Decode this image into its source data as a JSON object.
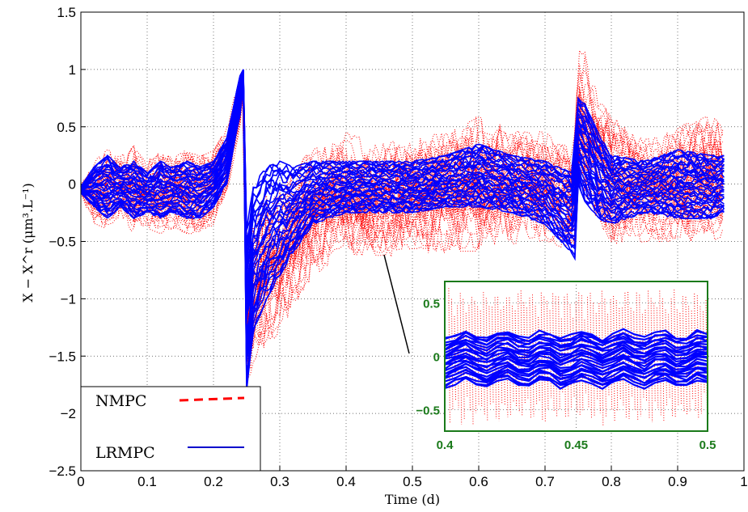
{
  "chart_data": {
    "type": "line",
    "xlabel": "Time (d)",
    "ylabel": "X − X^r  (μm³.L⁻¹)",
    "xlim": [
      0,
      1
    ],
    "ylim": [
      -2.5,
      1.5
    ],
    "x_ticks": [
      "0",
      "0.1",
      "0.2",
      "0.3",
      "0.4",
      "0.5",
      "0.6",
      "0.7",
      "0.8",
      "0.9",
      "1"
    ],
    "y_ticks": [
      "1.5",
      "1",
      "0.5",
      "0",
      "−0.5",
      "−1",
      "−1.5",
      "−2",
      "−2.5"
    ],
    "grid": true,
    "legend_position": "bottom-left",
    "series": [
      {
        "name": "NMPC",
        "color": "#ff0000",
        "style": "dotted",
        "x": [
          0.0,
          0.02,
          0.04,
          0.06,
          0.08,
          0.1,
          0.12,
          0.14,
          0.16,
          0.18,
          0.2,
          0.22,
          0.24,
          0.245,
          0.25,
          0.26,
          0.28,
          0.3,
          0.32,
          0.35,
          0.4,
          0.45,
          0.5,
          0.55,
          0.6,
          0.65,
          0.7,
          0.74,
          0.745,
          0.75,
          0.76,
          0.78,
          0.8,
          0.85,
          0.9,
          0.95,
          0.97
        ],
        "upper": [
          0.0,
          0.2,
          0.3,
          0.25,
          0.35,
          0.2,
          0.3,
          0.25,
          0.3,
          0.25,
          0.3,
          0.5,
          0.95,
          1.0,
          -0.7,
          -0.3,
          -0.1,
          0.0,
          0.15,
          0.3,
          0.45,
          0.35,
          0.4,
          0.45,
          0.6,
          0.5,
          0.45,
          0.3,
          0.7,
          1.2,
          1.15,
          0.85,
          0.6,
          0.45,
          0.5,
          0.6,
          0.5
        ],
        "lower": [
          -0.1,
          -0.35,
          -0.4,
          -0.35,
          -0.45,
          -0.4,
          -0.45,
          -0.4,
          -0.45,
          -0.45,
          -0.35,
          -0.1,
          0.5,
          0.8,
          -1.85,
          -1.6,
          -1.45,
          -1.3,
          -1.1,
          -0.8,
          -0.6,
          -0.65,
          -0.6,
          -0.6,
          -0.6,
          -0.55,
          -0.5,
          -0.6,
          -0.6,
          0.0,
          -0.15,
          -0.3,
          -0.55,
          -0.5,
          -0.5,
          -0.5,
          -0.45
        ]
      },
      {
        "name": "LRMPC",
        "color": "#0000ff",
        "style": "solid",
        "x": [
          0.0,
          0.02,
          0.04,
          0.06,
          0.08,
          0.1,
          0.12,
          0.14,
          0.16,
          0.18,
          0.2,
          0.22,
          0.24,
          0.245,
          0.25,
          0.26,
          0.28,
          0.3,
          0.32,
          0.35,
          0.4,
          0.45,
          0.5,
          0.55,
          0.6,
          0.65,
          0.7,
          0.74,
          0.745,
          0.75,
          0.76,
          0.78,
          0.8,
          0.85,
          0.9,
          0.95,
          0.97
        ],
        "upper": [
          -0.02,
          0.15,
          0.25,
          0.15,
          0.2,
          0.1,
          0.2,
          0.15,
          0.2,
          0.15,
          0.2,
          0.4,
          0.95,
          1.0,
          -0.4,
          0.0,
          0.15,
          0.2,
          0.15,
          0.2,
          0.2,
          0.2,
          0.2,
          0.25,
          0.35,
          0.25,
          0.2,
          0.1,
          0.4,
          0.75,
          0.7,
          0.45,
          0.25,
          0.2,
          0.3,
          0.25,
          0.25
        ],
        "lower": [
          -0.08,
          -0.2,
          -0.3,
          -0.2,
          -0.3,
          -0.25,
          -0.3,
          -0.25,
          -0.3,
          -0.3,
          -0.2,
          0.0,
          0.6,
          0.85,
          -1.8,
          -1.3,
          -1.0,
          -0.8,
          -0.6,
          -0.35,
          -0.25,
          -0.25,
          -0.25,
          -0.2,
          -0.2,
          -0.25,
          -0.35,
          -0.6,
          -0.65,
          0.0,
          -0.15,
          -0.3,
          -0.35,
          -0.25,
          -0.3,
          -0.3,
          -0.25
        ]
      }
    ],
    "inset": {
      "xlim": [
        0.4,
        0.5
      ],
      "ylim": [
        -0.7,
        0.7
      ],
      "x_ticks": [
        "0.4",
        "0.45",
        "0.5"
      ],
      "y_ticks": [
        "0.5",
        "0",
        "−0.5"
      ],
      "frame_color": "#1a7a1a"
    }
  }
}
